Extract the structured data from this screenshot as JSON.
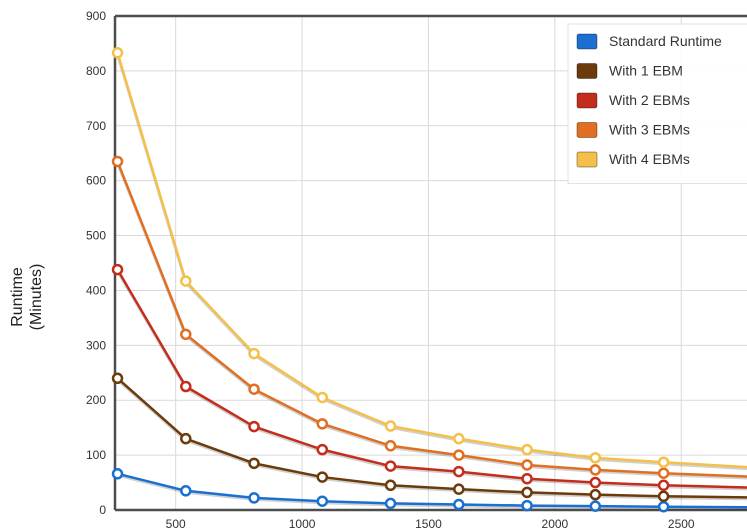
{
  "chart_data": {
    "type": "line",
    "title": "",
    "xlabel": "",
    "ylabel_lines": [
      "Runtime",
      "(Minutes)"
    ],
    "xlim": [
      260,
      2760
    ],
    "ylim": [
      0,
      900
    ],
    "x_ticks": [
      500,
      1000,
      1500,
      2000,
      2500
    ],
    "y_ticks": [
      0,
      100,
      200,
      300,
      400,
      500,
      600,
      700,
      800,
      900
    ],
    "grid": true,
    "legend_position": "top-right",
    "x": [
      270,
      540,
      810,
      1080,
      1350,
      1620,
      1890,
      2160,
      2430,
      2760
    ],
    "series": [
      {
        "name": "Standard Runtime",
        "color": "#1a6fd0",
        "values": [
          66,
          35,
          22,
          16,
          12,
          10,
          8,
          7,
          6,
          5
        ]
      },
      {
        "name": "With 1 EBM",
        "color": "#6b3b0c",
        "values": [
          240,
          130,
          85,
          60,
          45,
          38,
          32,
          28,
          25,
          23
        ]
      },
      {
        "name": "With 2 EBMs",
        "color": "#c32d1b",
        "values": [
          438,
          225,
          152,
          110,
          80,
          70,
          57,
          50,
          45,
          41
        ]
      },
      {
        "name": "With 3 EBMs",
        "color": "#e06f22",
        "values": [
          635,
          320,
          220,
          157,
          117,
          100,
          82,
          73,
          67,
          61
        ]
      },
      {
        "name": "With 4 EBMs",
        "color": "#f5c04a",
        "values": [
          833,
          417,
          285,
          205,
          153,
          130,
          110,
          95,
          87,
          78
        ]
      }
    ]
  }
}
